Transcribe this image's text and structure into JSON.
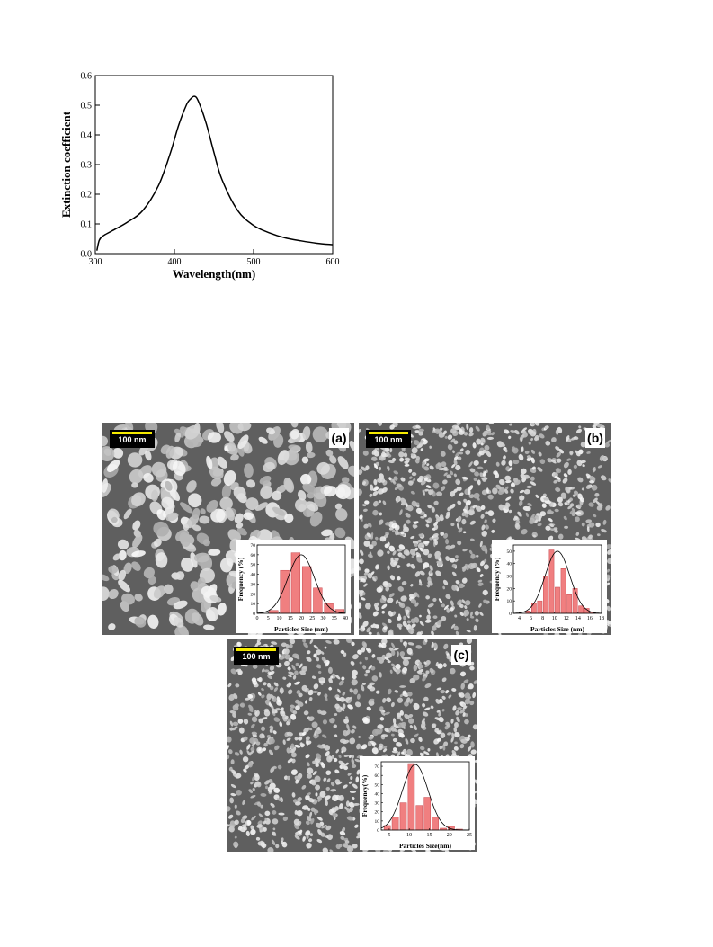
{
  "chart_data": [
    {
      "type": "line",
      "panel": "spectrum",
      "xlabel": "Wavelength(nm)",
      "ylabel": "Extinction coefficient",
      "xlim": [
        300,
        600
      ],
      "ylim": [
        0.0,
        0.6
      ],
      "xticks": [
        "300",
        "400",
        "500",
        "600"
      ],
      "yticks": [
        "0.0",
        "0.1",
        "0.2",
        "0.3",
        "0.4",
        "0.5",
        "0.6"
      ],
      "series": [
        {
          "x": [
            302,
            305,
            310,
            320,
            340,
            360,
            380,
            395,
            405,
            415,
            420,
            425,
            430,
            440,
            450,
            460,
            480,
            500,
            520,
            540,
            560,
            580,
            600
          ],
          "y": [
            0.01,
            0.045,
            0.06,
            0.075,
            0.105,
            0.145,
            0.23,
            0.34,
            0.43,
            0.5,
            0.52,
            0.53,
            0.515,
            0.44,
            0.34,
            0.25,
            0.145,
            0.095,
            0.07,
            0.053,
            0.043,
            0.035,
            0.03
          ]
        }
      ]
    },
    {
      "type": "bar",
      "panel": "(a)",
      "xlabel": "Particles Size (nm)",
      "ylabel": "Frequency (%)",
      "xlim": [
        0,
        40
      ],
      "ylim": [
        0,
        70
      ],
      "xticks": [
        "0",
        "5",
        "10",
        "15",
        "20",
        "25",
        "30",
        "35",
        "40"
      ],
      "yticks": [
        "0",
        "10",
        "20",
        "30",
        "40",
        "50",
        "60",
        "70"
      ],
      "bins": [
        7.5,
        12.5,
        17.5,
        22.5,
        27.5,
        32.5,
        37.5
      ],
      "values": [
        3,
        44,
        62,
        48,
        26,
        10,
        4
      ],
      "fit_peak": 20,
      "fit_height": 60,
      "fit_sigma": 6
    },
    {
      "type": "bar",
      "panel": "(b)",
      "xlabel": "Particles Size (nm)",
      "ylabel": "Frequency (%)",
      "xlim": [
        3,
        18
      ],
      "ylim": [
        0,
        55
      ],
      "xticks": [
        "4",
        "6",
        "8",
        "10",
        "12",
        "14",
        "16",
        "18"
      ],
      "yticks": [
        "0",
        "10",
        "20",
        "30",
        "40",
        "50"
      ],
      "bins": [
        5.5,
        6.5,
        7.5,
        8.5,
        9.5,
        10.5,
        11.5,
        12.5,
        13.5,
        14.5,
        15.5,
        16.5
      ],
      "values": [
        2,
        8,
        10,
        30,
        51,
        21,
        36,
        15,
        20,
        6,
        4,
        1
      ],
      "fit_peak": 10.5,
      "fit_height": 50,
      "fit_sigma": 2.1
    },
    {
      "type": "bar",
      "panel": "(c)",
      "xlabel": "Particles Size(nm)",
      "ylabel": "Frequency(%)",
      "xlim": [
        3,
        25
      ],
      "ylim": [
        0,
        75
      ],
      "xticks": [
        "5",
        "10",
        "15",
        "20",
        "25"
      ],
      "yticks": [
        "0",
        "10",
        "20",
        "30",
        "40",
        "50",
        "60",
        "70"
      ],
      "bins": [
        4.5,
        6.5,
        8.5,
        10.5,
        12.5,
        14.5,
        16.5,
        18.5,
        20.5,
        22.5
      ],
      "values": [
        5,
        14,
        30,
        73,
        27,
        36,
        14,
        2,
        4,
        1
      ],
      "fit_peak": 11.5,
      "fit_height": 72,
      "fit_sigma": 3.2
    }
  ],
  "sem": {
    "panels": [
      {
        "label": "(a)",
        "scalebar": "100 nm",
        "grain": "large"
      },
      {
        "label": "(b)",
        "scalebar": "100 nm",
        "grain": "small"
      },
      {
        "label": "(c)",
        "scalebar": "100 nm",
        "grain": "small"
      }
    ]
  },
  "colors": {
    "bar_fill": "#f07f80",
    "bar_edge": "#c84a50",
    "sem_bg": "#5f5f5f",
    "sem_grain": "#d8d8d8",
    "scalebar": "#f5ea00"
  }
}
